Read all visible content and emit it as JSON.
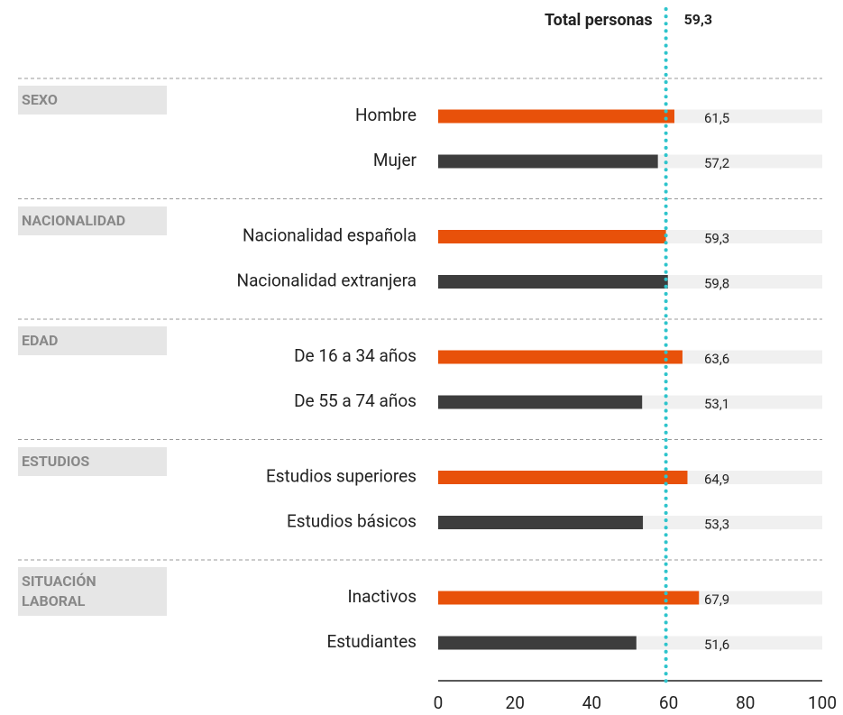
{
  "chart_data": {
    "type": "bar",
    "reference": {
      "label": "Total personas",
      "value": 59.3,
      "value_label": "59,3"
    },
    "colors": [
      "#e8510a",
      "#3d3d3d"
    ],
    "groups": [
      {
        "name": "SEXO",
        "categories": [
          "Hombre",
          "Mujer"
        ],
        "values": [
          61.5,
          57.2
        ],
        "value_labels": [
          "61,5",
          "57,2"
        ]
      },
      {
        "name": "NACIONALIDAD",
        "categories": [
          "Nacionalidad española",
          "Nacionalidad extranjera"
        ],
        "values": [
          59.3,
          59.8
        ],
        "value_labels": [
          "59,3",
          "59,8"
        ]
      },
      {
        "name": "EDAD",
        "categories": [
          "De 16 a 34 años",
          "De 55 a 74 años"
        ],
        "values": [
          63.6,
          53.1
        ],
        "value_labels": [
          "63,6",
          "53,1"
        ]
      },
      {
        "name": "ESTUDIOS",
        "categories": [
          "Estudios superiores",
          "Estudios básicos"
        ],
        "values": [
          64.9,
          53.3
        ],
        "value_labels": [
          "64,9",
          "53,3"
        ]
      },
      {
        "name": "SITUACIÓN LABORAL",
        "categories": [
          "Inactivos",
          "Estudiantes"
        ],
        "values": [
          67.9,
          51.6
        ],
        "value_labels": [
          "67,9",
          "51,6"
        ]
      }
    ],
    "xlim": [
      0,
      100
    ],
    "xticks": [
      0,
      20,
      40,
      60,
      80,
      100
    ]
  }
}
